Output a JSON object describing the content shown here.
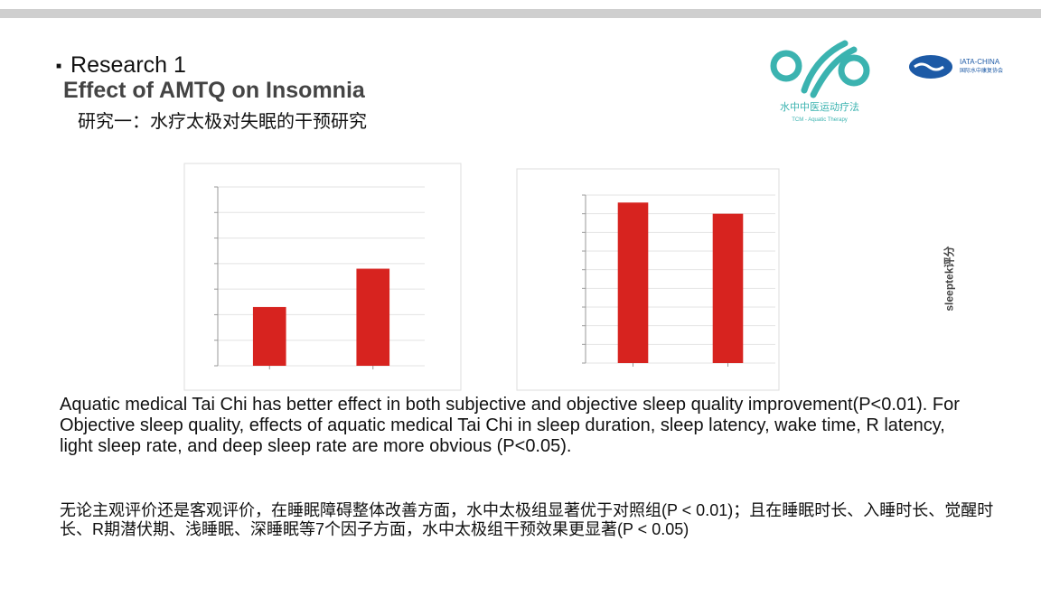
{
  "header": {
    "bullet": "Research 1",
    "title": "Effect of AMTQ on Insomnia",
    "subtitle": "研究一：水疗太极对失眠的干预研究"
  },
  "logos": {
    "left_name": "水中中医运动疗法",
    "left_sub": "TCM - Aquatic Therapy",
    "right_name": "IATA-CHINA",
    "right_sub": "国际水中康复协会"
  },
  "side_label": "sleeptek评分",
  "chart_data": [
    {
      "type": "bar",
      "categories": [
        null,
        null
      ],
      "values": [
        2.3,
        3.8
      ],
      "color": "#d7231f",
      "ylim": [
        0,
        7
      ],
      "yticks": [
        0,
        1,
        2,
        3,
        4,
        5,
        6,
        7
      ],
      "grid": true
    },
    {
      "type": "bar",
      "categories": [
        null,
        null
      ],
      "values": [
        8.6,
        8.0
      ],
      "color": "#d7231f",
      "ylim": [
        0,
        9
      ],
      "yticks": [
        0,
        1,
        2,
        3,
        4,
        5,
        6,
        7,
        8,
        9
      ],
      "grid": true
    }
  ],
  "paragraphs": [
    "Aquatic medical Tai Chi has better effect in both subjective and objective sleep quality improvement(P<0.01). For Objective sleep quality, effects of aquatic medical Tai Chi in sleep duration, sleep latency, wake time, R latency, light sleep rate, and deep sleep rate are more obvious (P<0.05).",
    "无论主观评价还是客观评价，在睡眠障碍整体改善方面，水中太极组显著优于对照组(P < 0.01)；且在睡眠时长、入睡时长、觉醒时长、R期潜伏期、浅睡眠、深睡眠等7个因子方面，水中太极组干预效果更显著(P < 0.05)"
  ]
}
